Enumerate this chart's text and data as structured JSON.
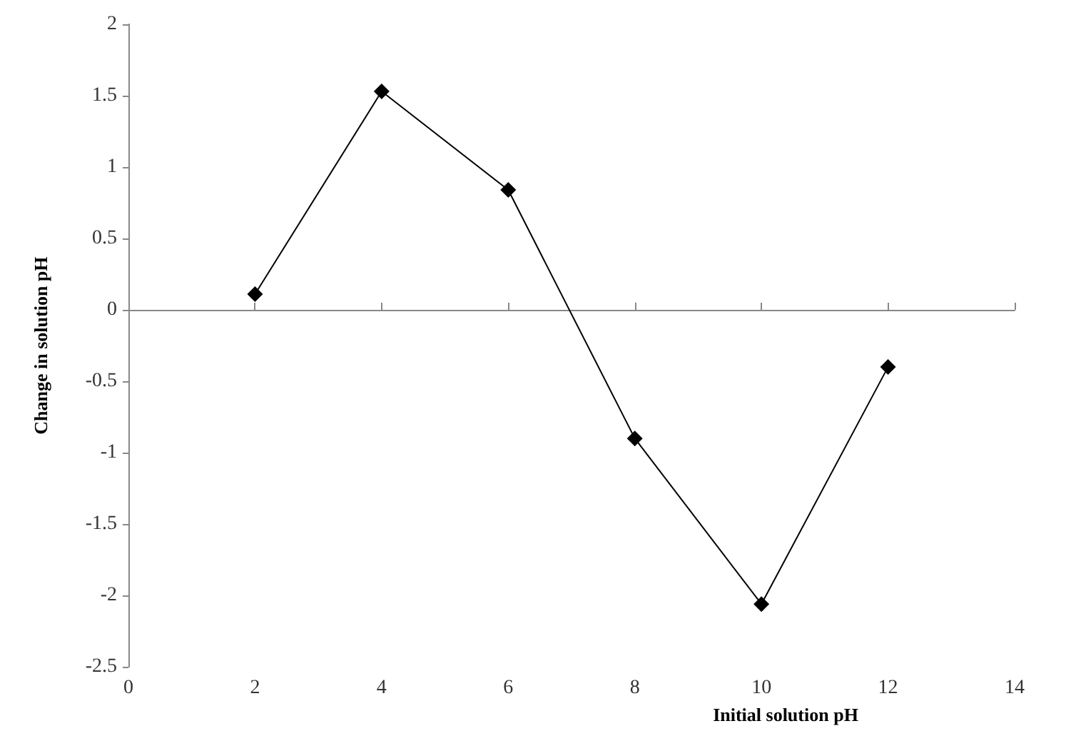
{
  "chart_data": {
    "type": "line",
    "xlabel": "Initial solution pH",
    "ylabel": "Change in solution pH",
    "x": [
      2,
      4,
      6,
      8,
      10,
      12
    ],
    "series": [
      {
        "color": "#000000",
        "values": [
          0.11,
          1.53,
          0.84,
          -0.9,
          -2.06,
          -0.4
        ]
      }
    ],
    "xlim": [
      0,
      14
    ],
    "xticks": [
      0,
      2,
      4,
      6,
      8,
      10,
      12,
      14
    ],
    "ylim": [
      -2.5,
      2
    ],
    "yticks": [
      2,
      1.5,
      1,
      0.5,
      0,
      -0.5,
      -1,
      -1.5,
      -2,
      -2.5
    ],
    "marker": "diamond",
    "line_style": "solid"
  }
}
